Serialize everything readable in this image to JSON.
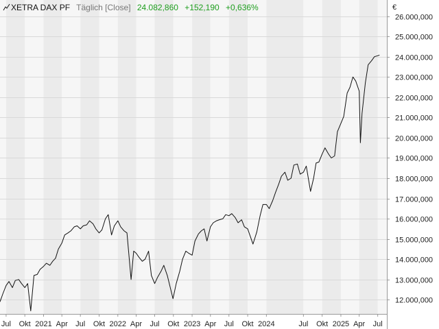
{
  "header": {
    "icon": "line-chart-icon",
    "symbol": "XETRA DAX PF",
    "interval": "Täglich [Close]",
    "last": "24.082,860",
    "change": "+152,190",
    "change_pct": "+0,636%"
  },
  "colors": {
    "line": "#111111",
    "positive": "#1e9e1e",
    "muted": "#777777",
    "band_light": "#f6f6f6",
    "band_dark": "#ebebeb",
    "grid": "#d9d9d9"
  },
  "chart_data": {
    "type": "line",
    "title": "",
    "xlabel": "",
    "ylabel": "",
    "y_unit": "€",
    "ylim": [
      11300,
      26800
    ],
    "y_ticks": [
      12000,
      13000,
      14000,
      15000,
      16000,
      17000,
      18000,
      19000,
      20000,
      21000,
      22000,
      23000,
      24000,
      25000,
      26000
    ],
    "y_tick_labels": [
      "12.000,000",
      "13.000,000",
      "14.000,000",
      "15.000,000",
      "16.000,000",
      "17.000,000",
      "18.000,000",
      "19.000,000",
      "20.000,000",
      "21.000,000",
      "22.000,000",
      "23.000,000",
      "24.000,000",
      "25.000,000",
      "26.000,000"
    ],
    "x_range": [
      "2020-06-01",
      "2025-08-15"
    ],
    "x_ticks": [
      {
        "date": "2020-07-01",
        "label": "Jul"
      },
      {
        "date": "2020-10-01",
        "label": "Okt"
      },
      {
        "date": "2021-01-01",
        "label": "2021"
      },
      {
        "date": "2021-04-01",
        "label": "Apr"
      },
      {
        "date": "2021-07-01",
        "label": "Jul"
      },
      {
        "date": "2021-10-01",
        "label": "Okt"
      },
      {
        "date": "2022-01-01",
        "label": "2022"
      },
      {
        "date": "2022-04-01",
        "label": "Apr"
      },
      {
        "date": "2022-07-01",
        "label": "Jul"
      },
      {
        "date": "2022-10-01",
        "label": "Okt"
      },
      {
        "date": "2023-01-01",
        "label": "2023"
      },
      {
        "date": "2023-04-01",
        "label": "Apr"
      },
      {
        "date": "2023-07-01",
        "label": "Jul"
      },
      {
        "date": "2023-10-01",
        "label": "Okt"
      },
      {
        "date": "2024-01-01",
        "label": "2024"
      },
      {
        "date": "2024-07-01",
        "label": "Jul"
      },
      {
        "date": "2024-10-01",
        "label": "Okt"
      },
      {
        "date": "2025-01-01",
        "label": "2025"
      },
      {
        "date": "2025-04-01",
        "label": "Apr"
      },
      {
        "date": "2025-07-01",
        "label": "Jul"
      }
    ],
    "grid": true,
    "series": [
      {
        "name": "",
        "x": [
          "2020-06-01",
          "2020-06-15",
          "2020-07-01",
          "2020-07-15",
          "2020-08-01",
          "2020-08-15",
          "2020-09-01",
          "2020-09-15",
          "2020-10-01",
          "2020-10-15",
          "2020-10-30",
          "2020-11-15",
          "2020-12-01",
          "2020-12-15",
          "2021-01-01",
          "2021-01-15",
          "2021-02-01",
          "2021-02-15",
          "2021-03-01",
          "2021-03-15",
          "2021-04-01",
          "2021-04-15",
          "2021-05-01",
          "2021-05-15",
          "2021-06-01",
          "2021-06-15",
          "2021-07-01",
          "2021-07-15",
          "2021-08-01",
          "2021-08-15",
          "2021-09-01",
          "2021-09-15",
          "2021-10-01",
          "2021-10-15",
          "2021-11-01",
          "2021-11-15",
          "2021-12-01",
          "2021-12-15",
          "2022-01-01",
          "2022-01-15",
          "2022-02-01",
          "2022-02-15",
          "2022-03-07",
          "2022-03-20",
          "2022-04-01",
          "2022-04-15",
          "2022-05-01",
          "2022-05-15",
          "2022-06-01",
          "2022-06-15",
          "2022-07-01",
          "2022-07-15",
          "2022-08-01",
          "2022-08-15",
          "2022-09-01",
          "2022-09-29",
          "2022-10-15",
          "2022-11-01",
          "2022-11-15",
          "2022-12-01",
          "2022-12-15",
          "2023-01-01",
          "2023-01-15",
          "2023-02-01",
          "2023-02-15",
          "2023-03-01",
          "2023-03-15",
          "2023-04-01",
          "2023-04-15",
          "2023-05-01",
          "2023-05-15",
          "2023-06-01",
          "2023-06-15",
          "2023-07-01",
          "2023-07-15",
          "2023-08-01",
          "2023-08-15",
          "2023-09-01",
          "2023-09-15",
          "2023-10-01",
          "2023-10-27",
          "2023-11-15",
          "2023-12-01",
          "2023-12-15",
          "2024-01-01",
          "2024-01-15",
          "2024-02-01",
          "2024-02-15",
          "2024-03-01",
          "2024-03-15",
          "2024-04-01",
          "2024-04-15",
          "2024-05-01",
          "2024-05-15",
          "2024-06-01",
          "2024-06-15",
          "2024-07-01",
          "2024-07-15",
          "2024-08-05",
          "2024-08-20",
          "2024-09-01",
          "2024-09-15",
          "2024-10-01",
          "2024-10-15",
          "2024-11-01",
          "2024-11-15",
          "2024-12-01",
          "2024-12-15",
          "2025-01-01",
          "2025-01-15",
          "2025-02-01",
          "2025-02-15",
          "2025-03-01",
          "2025-03-15",
          "2025-04-01",
          "2025-04-07",
          "2025-04-15",
          "2025-05-01",
          "2025-05-15",
          "2025-06-01",
          "2025-06-15",
          "2025-07-01",
          "2025-07-10"
        ],
        "values": [
          11900,
          12300,
          12700,
          12900,
          12600,
          12950,
          13000,
          12800,
          12600,
          12800,
          11450,
          13200,
          13250,
          13500,
          13650,
          13800,
          13700,
          13900,
          14050,
          14500,
          14800,
          15200,
          15300,
          15400,
          15600,
          15650,
          15500,
          15650,
          15700,
          15900,
          15750,
          15500,
          15300,
          15450,
          16000,
          16200,
          15200,
          15650,
          15900,
          15600,
          15400,
          15300,
          13000,
          14400,
          14300,
          14100,
          13900,
          14000,
          14400,
          13200,
          12800,
          13100,
          13400,
          13700,
          13200,
          12050,
          12800,
          13400,
          14000,
          14400,
          14300,
          14200,
          14900,
          15250,
          15400,
          15500,
          14900,
          15600,
          15800,
          15900,
          15950,
          16000,
          16200,
          16150,
          16250,
          16050,
          15800,
          15950,
          15600,
          15500,
          14750,
          15350,
          16150,
          16700,
          16700,
          16500,
          16900,
          17300,
          17700,
          18100,
          18300,
          17900,
          18000,
          18650,
          18700,
          18200,
          18300,
          18600,
          17350,
          18000,
          18750,
          18800,
          19200,
          19500,
          19200,
          19000,
          19100,
          20300,
          20700,
          21050,
          22200,
          22500,
          23000,
          22800,
          22300,
          19750,
          21200,
          22700,
          23600,
          23800,
          24000,
          24050,
          24082.86
        ]
      }
    ]
  }
}
